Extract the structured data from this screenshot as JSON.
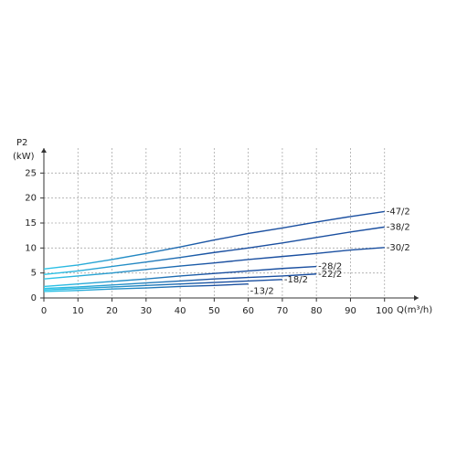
{
  "chart_data": {
    "type": "line",
    "y_label_lines": [
      "P2",
      "(kW)"
    ],
    "x_label": "Q(m³/h)",
    "x": [
      0,
      10,
      20,
      30,
      40,
      50,
      60,
      70,
      80,
      90,
      100
    ],
    "xlim": [
      0,
      110
    ],
    "xticks": [
      0,
      10,
      20,
      30,
      40,
      50,
      60,
      70,
      80,
      90,
      100
    ],
    "ylim": [
      0,
      30
    ],
    "yticks": [
      0,
      5,
      10,
      15,
      20,
      25
    ],
    "grid": true,
    "gradient_start_color": "#2ec8ea",
    "series": [
      {
        "name": "-47/2",
        "color": "#1a4fa0",
        "values": [
          5.8,
          6.6,
          7.7,
          8.9,
          10.2,
          11.6,
          12.9,
          14.0,
          15.2,
          16.3,
          17.3
        ]
      },
      {
        "name": "-38/2",
        "color": "#1a4fa0",
        "values": [
          4.7,
          5.4,
          6.3,
          7.2,
          8.1,
          9.1,
          10.0,
          11.0,
          12.1,
          13.2,
          14.2
        ]
      },
      {
        "name": "-30/2",
        "color": "#1a4fa0",
        "values": [
          3.8,
          4.4,
          5.0,
          5.7,
          6.4,
          7.0,
          7.7,
          8.3,
          8.9,
          9.6,
          10.1
        ]
      },
      {
        "name": "-28/2",
        "color": "#1a4fa0",
        "values": [
          2.3,
          2.8,
          3.3,
          3.8,
          4.4,
          4.9,
          5.4,
          5.9,
          6.3,
          null,
          null
        ]
      },
      {
        "name": "-22/2",
        "color": "#1a4fa0",
        "values": [
          1.9,
          2.2,
          2.6,
          3.0,
          3.4,
          3.8,
          4.1,
          4.4,
          4.8,
          null,
          null
        ]
      },
      {
        "name": "-18/2",
        "color": "#1a4fa0",
        "values": [
          1.6,
          1.9,
          2.2,
          2.5,
          2.8,
          3.1,
          3.4,
          3.7,
          null,
          null,
          null
        ]
      },
      {
        "name": "-13/2",
        "color": "#1a4fa0",
        "values": [
          1.3,
          1.5,
          1.8,
          2.0,
          2.3,
          2.5,
          2.8,
          null,
          null,
          null,
          null
        ]
      }
    ]
  }
}
